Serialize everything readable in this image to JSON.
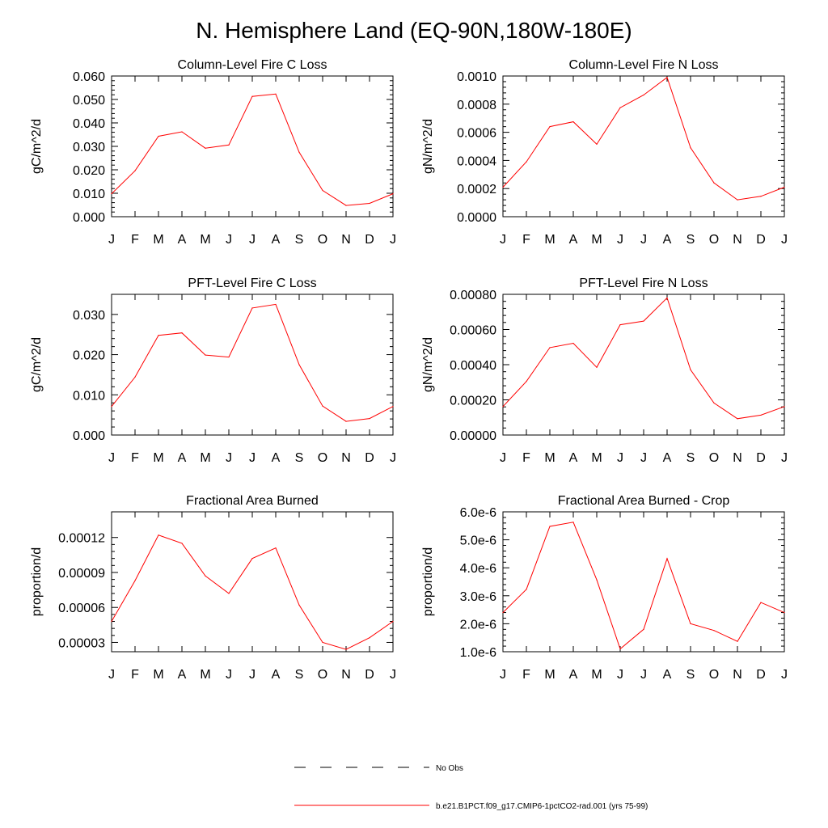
{
  "figure": {
    "title": "N. Hemisphere Land (EQ-90N,180W-180E)",
    "line_color": "#ff0000",
    "legend": [
      {
        "label": "No Obs",
        "style": "dashed",
        "color": "#000000"
      },
      {
        "label": "b.e21.B1PCT.f09_g17.CMIP6-1pctCO2-rad.001 (yrs 75-99)",
        "style": "solid",
        "color": "#ff0000"
      }
    ]
  },
  "chart_data": [
    {
      "type": "line",
      "title": "Column-Level Fire C Loss",
      "ylabel": "gC/m^2/d",
      "categories": [
        "J",
        "F",
        "M",
        "A",
        "M",
        "J",
        "J",
        "A",
        "S",
        "O",
        "N",
        "D",
        "J"
      ],
      "ylim": [
        0,
        0.06
      ],
      "yticks": [
        0,
        0.01,
        0.02,
        0.03,
        0.04,
        0.05,
        0.06
      ],
      "ytick_labels": [
        "0.000",
        "0.010",
        "0.020",
        "0.030",
        "0.040",
        "0.050",
        "0.060"
      ],
      "series": [
        {
          "values": [
            0.0098,
            0.0196,
            0.0343,
            0.0362,
            0.0292,
            0.0306,
            0.0513,
            0.0523,
            0.0275,
            0.0112,
            0.0048,
            0.0057,
            0.0098
          ]
        }
      ]
    },
    {
      "type": "line",
      "title": "Column-Level Fire N Loss",
      "ylabel": "gN/m^2/d",
      "categories": [
        "J",
        "F",
        "M",
        "A",
        "M",
        "J",
        "J",
        "A",
        "S",
        "O",
        "N",
        "D",
        "J"
      ],
      "ylim": [
        0,
        0.001
      ],
      "yticks": [
        0,
        0.0002,
        0.0004,
        0.0006,
        0.0008,
        0.001
      ],
      "ytick_labels": [
        "0.0000",
        "0.0002",
        "0.0004",
        "0.0006",
        "0.0008",
        "0.0010"
      ],
      "series": [
        {
          "values": [
            0.00021,
            0.00039,
            0.00064,
            0.000675,
            0.000515,
            0.000775,
            0.000865,
            0.00099,
            0.00049,
            0.00024,
            0.00012,
            0.000145,
            0.00021
          ]
        }
      ]
    },
    {
      "type": "line",
      "title": "PFT-Level Fire C Loss",
      "ylabel": "gC/m^2/d",
      "categories": [
        "J",
        "F",
        "M",
        "A",
        "M",
        "J",
        "J",
        "A",
        "S",
        "O",
        "N",
        "D",
        "J"
      ],
      "ylim": [
        0,
        0.035
      ],
      "yticks": [
        0,
        0.01,
        0.02,
        0.03
      ],
      "ytick_labels": [
        "0.000",
        "0.010",
        "0.020",
        "0.030"
      ],
      "series": [
        {
          "values": [
            0.0071,
            0.0144,
            0.0248,
            0.0254,
            0.0199,
            0.0194,
            0.0316,
            0.0325,
            0.0175,
            0.0072,
            0.0034,
            0.0041,
            0.0071
          ]
        }
      ]
    },
    {
      "type": "line",
      "title": "PFT-Level Fire N Loss",
      "ylabel": "gN/m^2/d",
      "categories": [
        "J",
        "F",
        "M",
        "A",
        "M",
        "J",
        "J",
        "A",
        "S",
        "O",
        "N",
        "D",
        "J"
      ],
      "ylim": [
        0,
        0.0008
      ],
      "yticks": [
        0,
        0.0002,
        0.0004,
        0.0006,
        0.0008
      ],
      "ytick_labels": [
        "0.00000",
        "0.00020",
        "0.00040",
        "0.00060",
        "0.00080"
      ],
      "series": [
        {
          "values": [
            0.000162,
            0.000305,
            0.000497,
            0.000522,
            0.000385,
            0.000627,
            0.000648,
            0.00078,
            0.000371,
            0.000182,
            9.3e-05,
            0.000113,
            0.000162
          ]
        }
      ]
    },
    {
      "type": "line",
      "title": "Fractional Area Burned",
      "ylabel": "proportion/d",
      "categories": [
        "J",
        "F",
        "M",
        "A",
        "M",
        "J",
        "J",
        "A",
        "S",
        "O",
        "N",
        "D",
        "J"
      ],
      "ylim": [
        2.2e-05,
        0.000142
      ],
      "yticks": [
        3e-05,
        6e-05,
        9e-05,
        0.00012
      ],
      "ytick_labels": [
        "0.00003",
        "0.00006",
        "0.00009",
        "0.00012"
      ],
      "series": [
        {
          "values": [
            4.8e-05,
            8.3e-05,
            0.000122,
            0.000115,
            8.7e-05,
            7.2e-05,
            0.000102,
            0.000111,
            6.2e-05,
            3e-05,
            2.4e-05,
            3.4e-05,
            4.8e-05
          ]
        }
      ]
    },
    {
      "type": "line",
      "title": "Fractional Area Burned - Crop",
      "ylabel": "proportion/d",
      "categories": [
        "J",
        "F",
        "M",
        "A",
        "M",
        "J",
        "J",
        "A",
        "S",
        "O",
        "N",
        "D",
        "J"
      ],
      "ylim": [
        1e-06,
        6e-06
      ],
      "yticks": [
        1e-06,
        2e-06,
        3e-06,
        4e-06,
        5e-06,
        6e-06
      ],
      "ytick_labels": [
        "1.0e-6",
        "2.0e-6",
        "3.0e-6",
        "4.0e-6",
        "5.0e-6",
        "6.0e-6"
      ],
      "series": [
        {
          "values": [
            2.4e-06,
            3.23e-06,
            5.48e-06,
            5.63e-06,
            3.57e-06,
            1.1e-06,
            1.8e-06,
            4.33e-06,
            2e-06,
            1.76e-06,
            1.37e-06,
            2.76e-06,
            2.4e-06
          ]
        }
      ]
    }
  ]
}
